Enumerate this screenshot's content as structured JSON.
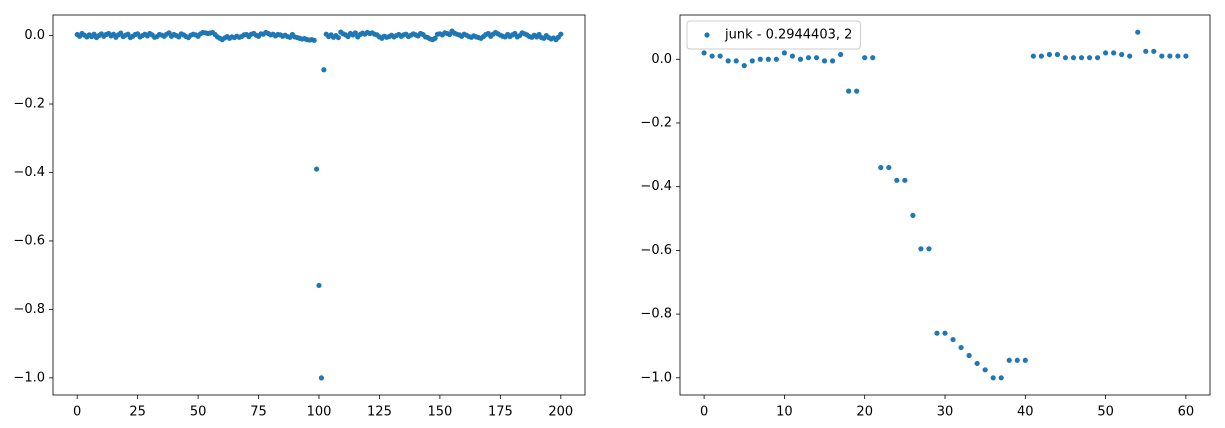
{
  "chart_data": [
    {
      "type": "scatter",
      "x": [
        0,
        1,
        2,
        3,
        4,
        5,
        6,
        7,
        8,
        9,
        10,
        11,
        12,
        13,
        14,
        15,
        16,
        17,
        18,
        19,
        20,
        21,
        22,
        23,
        24,
        25,
        26,
        27,
        28,
        29,
        30,
        31,
        32,
        33,
        34,
        35,
        36,
        37,
        38,
        39,
        40,
        41,
        42,
        43,
        44,
        45,
        46,
        47,
        48,
        49,
        50,
        51,
        52,
        53,
        54,
        55,
        56,
        57,
        58,
        59,
        60,
        61,
        62,
        63,
        64,
        65,
        66,
        67,
        68,
        69,
        70,
        71,
        72,
        73,
        74,
        75,
        76,
        77,
        78,
        79,
        80,
        81,
        82,
        83,
        84,
        85,
        86,
        87,
        88,
        89,
        90,
        91,
        92,
        93,
        94,
        95,
        96,
        97,
        98,
        99,
        100,
        101,
        102,
        103,
        104,
        105,
        106,
        107,
        108,
        109,
        110,
        111,
        112,
        113,
        114,
        115,
        116,
        117,
        118,
        119,
        120,
        121,
        122,
        123,
        124,
        125,
        126,
        127,
        128,
        129,
        130,
        131,
        132,
        133,
        134,
        135,
        136,
        137,
        138,
        139,
        140,
        141,
        142,
        143,
        144,
        145,
        146,
        147,
        148,
        149,
        150,
        151,
        152,
        153,
        154,
        155,
        156,
        157,
        158,
        159,
        160,
        161,
        162,
        163,
        164,
        165,
        166,
        167,
        168,
        169,
        170,
        171,
        172,
        173,
        174,
        175,
        176,
        177,
        178,
        179,
        180,
        181,
        182,
        183,
        184,
        185,
        186,
        187,
        188,
        189,
        190,
        191,
        192,
        193,
        194,
        195,
        196,
        197,
        198,
        199,
        200
      ],
      "series": [
        {
          "color": "#1f77b4",
          "values": [
            0.003,
            -0.002,
            0.006,
            0.001,
            -0.004,
            0.002,
            -0.003,
            0.004,
            -0.006,
            0.0,
            0.005,
            -0.002,
            0.003,
            0.006,
            -0.001,
            0.004,
            -0.005,
            0.002,
            0.007,
            -0.003,
            0.001,
            0.004,
            -0.006,
            -0.002,
            0.003,
            0.005,
            -0.004,
            0.0,
            0.004,
            -0.001,
            0.006,
            0.002,
            -0.005,
            -0.003,
            0.003,
            0.001,
            -0.002,
            0.004,
            0.008,
            -0.002,
            0.003,
            0.0,
            -0.004,
            0.005,
            0.002,
            -0.003,
            -0.006,
            0.001,
            0.004,
            0.002,
            -0.002,
            0.005,
            0.009,
            0.008,
            0.006,
            0.007,
            0.009,
            0.003,
            -0.004,
            -0.008,
            -0.012,
            -0.007,
            -0.003,
            -0.008,
            -0.004,
            -0.006,
            -0.002,
            -0.005,
            -0.003,
            0.002,
            0.003,
            -0.003,
            0.004,
            0.006,
            0.001,
            -0.002,
            0.005,
            0.004,
            0.009,
            0.006,
            0.002,
            0.004,
            -0.001,
            0.003,
            0.002,
            -0.002,
            0.001,
            -0.003,
            -0.005,
            0.003,
            -0.004,
            -0.006,
            -0.008,
            -0.01,
            -0.009,
            -0.012,
            -0.013,
            -0.012,
            -0.014,
            -0.39,
            -0.73,
            -1.0,
            -0.1,
            0.004,
            -0.003,
            0.002,
            -0.005,
            0.0,
            -0.006,
            0.01,
            0.005,
            0.002,
            -0.003,
            0.006,
            0.002,
            0.008,
            -0.004,
            0.003,
            0.007,
            0.004,
            0.009,
            0.006,
            0.008,
            0.004,
            0.002,
            -0.004,
            -0.008,
            -0.002,
            -0.005,
            -0.003,
            0.001,
            -0.004,
            0.0,
            0.003,
            -0.002,
            0.002,
            0.004,
            -0.003,
            0.001,
            0.005,
            0.002,
            -0.001,
            0.006,
            0.003,
            -0.004,
            -0.006,
            -0.01,
            -0.012,
            -0.008,
            0.004,
            0.005,
            0.002,
            0.008,
            0.006,
            0.003,
            0.013,
            0.007,
            0.004,
            0.002,
            -0.002,
            0.004,
            0.001,
            -0.003,
            -0.005,
            -0.001,
            -0.004,
            -0.006,
            -0.008,
            -0.003,
            0.003,
            0.006,
            -0.002,
            0.004,
            0.009,
            0.005,
            0.001,
            -0.002,
            -0.004,
            0.003,
            -0.003,
            0.002,
            0.006,
            -0.004,
            0.0,
            0.008,
            0.005,
            0.002,
            -0.003,
            -0.005,
            0.001,
            -0.004,
            0.003,
            -0.006,
            -0.008,
            0.0,
            -0.006,
            -0.01,
            -0.007,
            -0.012,
            -0.005,
            0.004
          ]
        }
      ],
      "xlim": [
        -10,
        210
      ],
      "ylim": [
        -1.05,
        0.06
      ],
      "xticks": [
        0,
        25,
        50,
        75,
        100,
        125,
        150,
        175,
        200
      ],
      "yticks": [
        {
          "value": 0,
          "label": "0.0"
        },
        {
          "value": -0.2,
          "label": "−0.2"
        },
        {
          "value": -0.4,
          "label": "−0.4"
        },
        {
          "value": -0.6,
          "label": "−0.6"
        },
        {
          "value": -0.8,
          "label": "−0.8"
        },
        {
          "value": -1.0,
          "label": "−1.0"
        }
      ]
    },
    {
      "type": "scatter",
      "x": [
        0,
        1,
        2,
        3,
        4,
        5,
        6,
        7,
        8,
        9,
        10,
        11,
        12,
        13,
        14,
        15,
        16,
        17,
        18,
        19,
        20,
        21,
        22,
        23,
        24,
        25,
        26,
        27,
        28,
        29,
        30,
        31,
        32,
        33,
        34,
        35,
        36,
        37,
        38,
        39,
        40,
        41,
        42,
        43,
        44,
        45,
        46,
        47,
        48,
        49,
        50,
        51,
        52,
        53,
        54,
        55,
        56,
        57,
        58,
        59,
        60
      ],
      "series": [
        {
          "name": "junk - 0.2944403, 2",
          "color": "#1f77b4",
          "values": [
            0.02,
            0.01,
            0.01,
            -0.005,
            -0.005,
            -0.02,
            -0.005,
            0,
            0,
            0,
            0.02,
            0.01,
            0,
            0.005,
            0.005,
            -0.005,
            -0.005,
            0.015,
            -0.1,
            -0.1,
            0.005,
            0.005,
            -0.34,
            -0.34,
            -0.38,
            -0.38,
            -0.49,
            -0.595,
            -0.595,
            -0.86,
            -0.86,
            -0.88,
            -0.905,
            -0.93,
            -0.955,
            -0.975,
            -1.0,
            -1.0,
            -0.945,
            -0.945,
            -0.945,
            0.01,
            0.01,
            0.015,
            0.015,
            0.005,
            0.005,
            0.005,
            0.005,
            0.005,
            0.02,
            0.02,
            0.015,
            0.01,
            0.085,
            0.025,
            0.025,
            0.01,
            0.01,
            0.01,
            0.01
          ]
        }
      ],
      "xlim": [
        -3,
        63
      ],
      "ylim": [
        -1.054,
        0.139
      ],
      "xticks": [
        0,
        10,
        20,
        30,
        40,
        50,
        60
      ],
      "yticks": [
        {
          "value": 0,
          "label": "0.0"
        },
        {
          "value": -0.2,
          "label": "−0.2"
        },
        {
          "value": -0.4,
          "label": "−0.4"
        },
        {
          "value": -0.6,
          "label": "−0.6"
        },
        {
          "value": -0.8,
          "label": "−0.8"
        },
        {
          "value": -1.0,
          "label": "−1.0"
        }
      ],
      "legend": "upper left"
    }
  ]
}
